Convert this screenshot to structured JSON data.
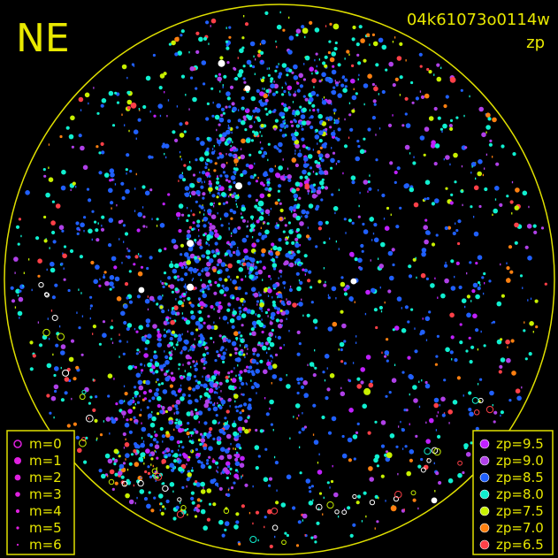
{
  "title": "NE",
  "frame_id": "04k61073o0114w",
  "color_by": "zp",
  "colors": {
    "background": "#000000",
    "horizon": "#e0e000",
    "text": "#e8e800",
    "unmatched": "#ffffff"
  },
  "chart_data": {
    "type": "scatter",
    "projection": "all-sky polar (azimuth, zenith distance)",
    "grid": false,
    "magnitude_legend": {
      "placement": "bottom-left",
      "entries": [
        {
          "label": "m=0",
          "m": 0
        },
        {
          "label": "m=1",
          "m": 1
        },
        {
          "label": "m=2",
          "m": 2
        },
        {
          "label": "m=3",
          "m": 3
        },
        {
          "label": "m=4",
          "m": 4
        },
        {
          "label": "m=5",
          "m": 5
        },
        {
          "label": "m=6",
          "m": 6
        }
      ]
    },
    "zp_legend": {
      "placement": "bottom-right",
      "entries": [
        {
          "label": "zp=9.5",
          "zp": 9.5,
          "color": "#c020ff"
        },
        {
          "label": "zp=9.0",
          "zp": 9.0,
          "color": "#b040e8"
        },
        {
          "label": "zp=8.5",
          "zp": 8.5,
          "color": "#2060ff"
        },
        {
          "label": "zp=8.0",
          "zp": 8.0,
          "color": "#10f0d0"
        },
        {
          "label": "zp=7.5",
          "zp": 7.5,
          "color": "#c8f000"
        },
        {
          "label": "zp=7.0",
          "zp": 7.0,
          "color": "#ff8010"
        },
        {
          "label": "zp=6.5",
          "zp": 6.5,
          "color": "#ff4048"
        }
      ]
    },
    "notable_stars": [
      {
        "az": 292,
        "zd": 31.5,
        "m": 1,
        "zp": null
      },
      {
        "az": 336.5,
        "zd": 33.4,
        "m": 1,
        "zp": null
      },
      {
        "az": 265,
        "zd": 29.3,
        "m": 1,
        "zp": null
      },
      {
        "az": 345,
        "zd": 73.2,
        "m": 1,
        "zp": null
      },
      {
        "az": 350.5,
        "zd": 63.4,
        "m": 2,
        "zp": null
      },
      {
        "az": 91.4,
        "zd": 24.3,
        "m": 2,
        "zp": null
      },
      {
        "az": 145,
        "zd": 88.3,
        "m": 2,
        "zp": null
      },
      {
        "az": 265.6,
        "zd": 45.3,
        "m": 2,
        "zp": null
      },
      {
        "az": 142,
        "zd": 46.6,
        "m": 1,
        "zp": 7.5
      },
      {
        "az": 346.3,
        "zd": 25.6,
        "m": 2,
        "zp": 8.0
      },
      {
        "az": 320,
        "zd": 74.3,
        "m": 2,
        "zp": 6.5
      },
      {
        "az": 41,
        "zd": 86.5,
        "m": 2,
        "zp": 6.5
      },
      {
        "az": 12.6,
        "zd": 84.8,
        "m": 2,
        "zp": 7.5
      },
      {
        "az": 5.9,
        "zd": 81.8,
        "m": 2,
        "zp": 7.5
      },
      {
        "az": 153.5,
        "zd": 83.7,
        "m": 2,
        "zp": 7.0
      },
      {
        "az": 148,
        "zd": 67.8,
        "m": 2,
        "zp": 7.5
      }
    ]
  }
}
